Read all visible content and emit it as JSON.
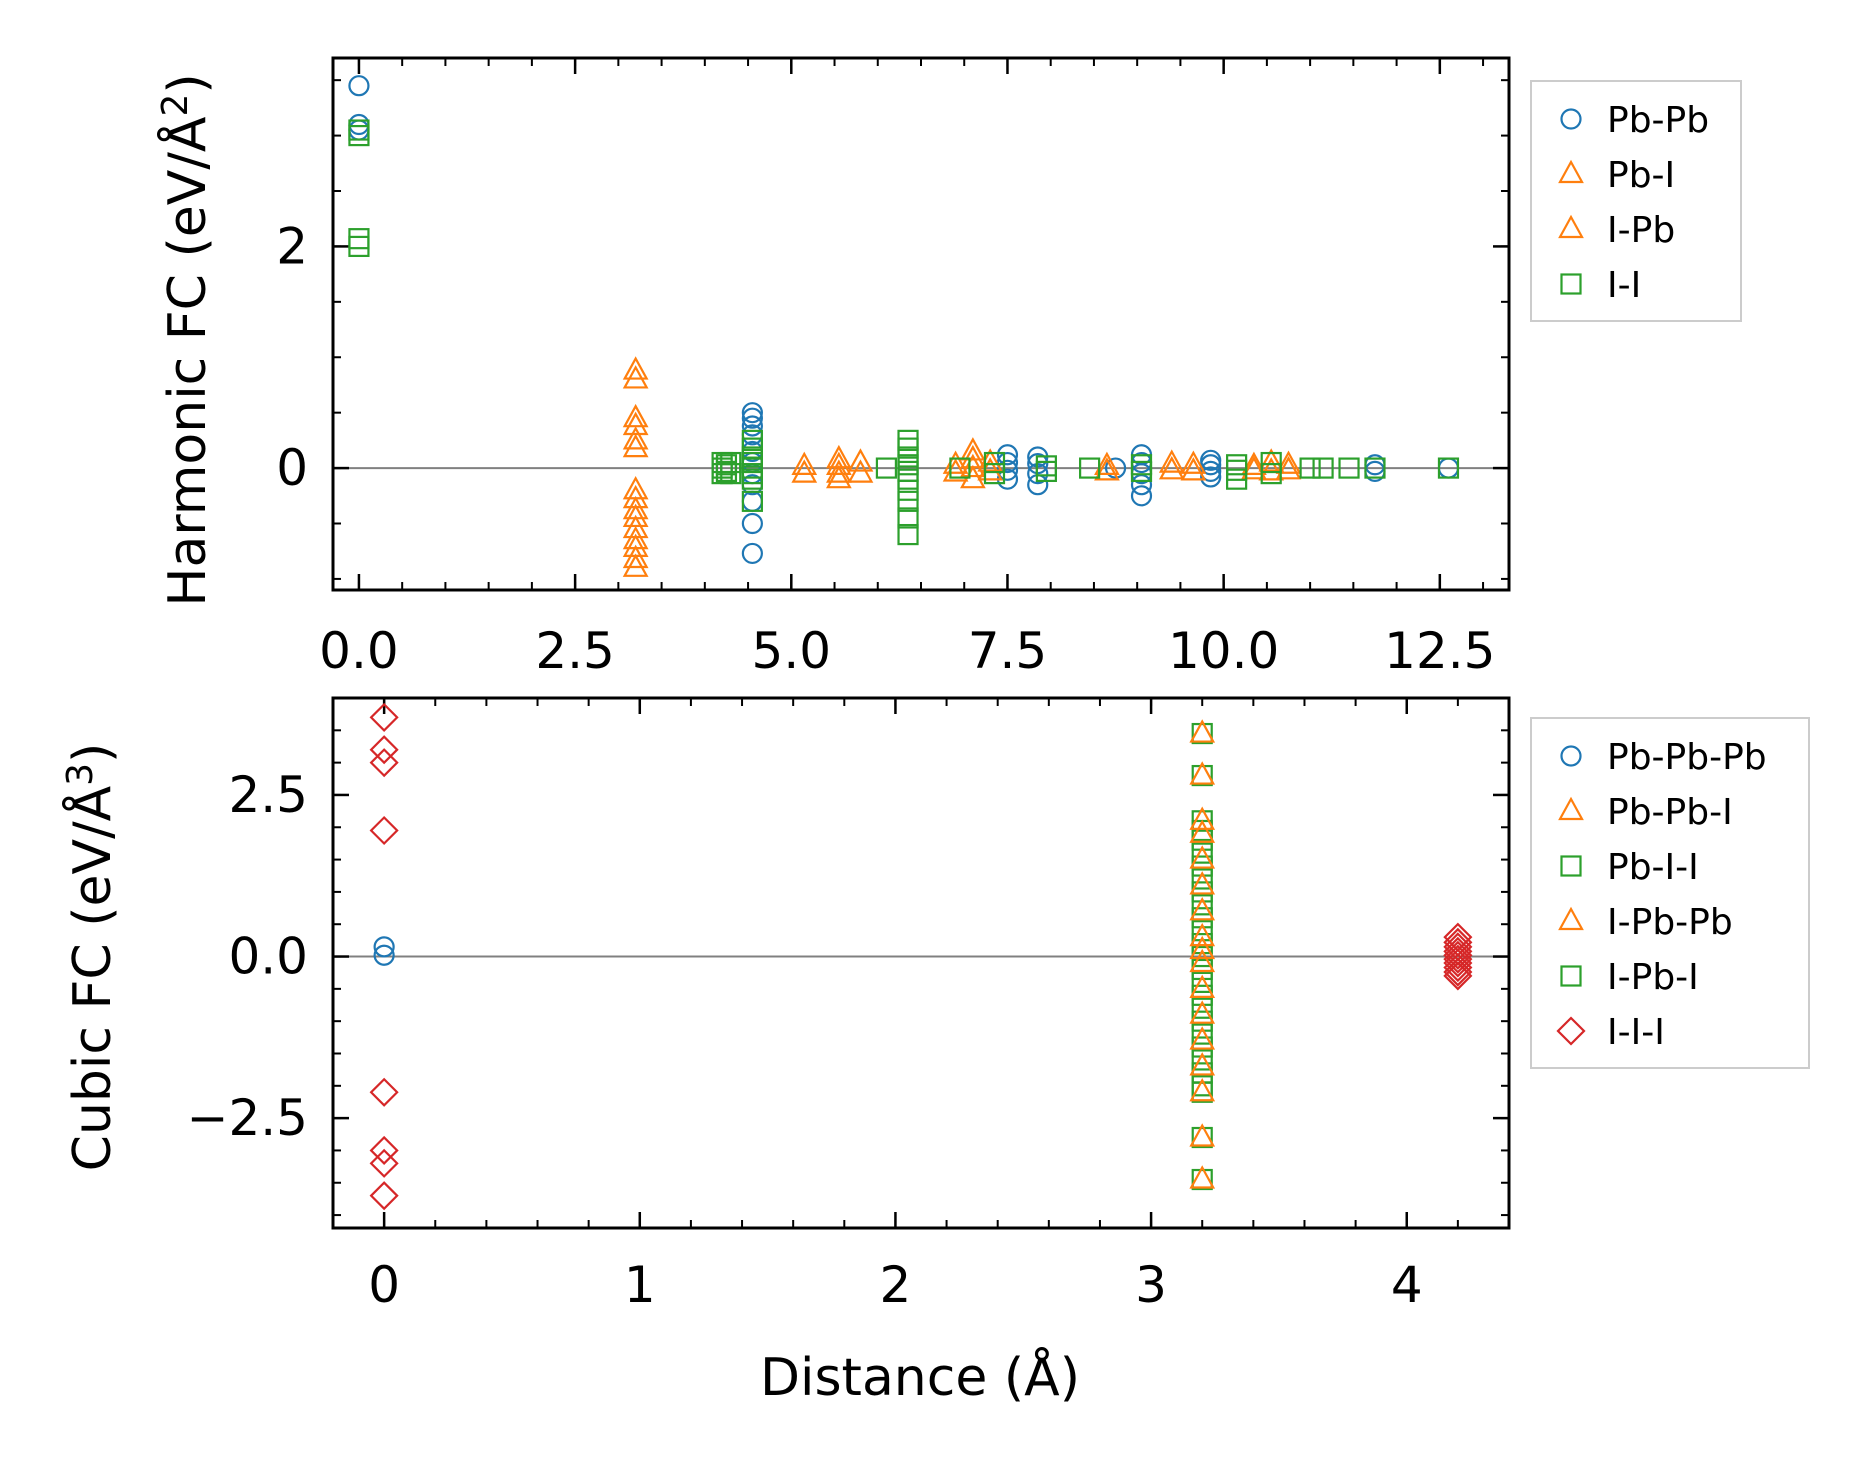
{
  "colors": {
    "pbpb": "#1f77b4",
    "pbi": "#ff7f0e",
    "ii": "#2ca02c",
    "iii": "#d62728",
    "zero_line": "#808080",
    "legend_border": "#cccccc"
  },
  "chart_data": [
    {
      "type": "scatter",
      "id": "harmonic",
      "ylabel": "Harmonic FC (eV/Å",
      "ylabel_sup": "2",
      "ylabel_end": ")",
      "xlim": [
        -0.3,
        13.3
      ],
      "ylim": [
        -1.1,
        3.7
      ],
      "xticks": [
        0.0,
        2.5,
        5.0,
        7.5,
        10.0,
        12.5
      ],
      "xtick_labels": [
        "0.0",
        "2.5",
        "5.0",
        "7.5",
        "10.0",
        "12.5"
      ],
      "xminor_step": 0.5,
      "yticks": [
        0,
        2
      ],
      "ytick_labels": [
        "0",
        "2"
      ],
      "yminor_step": 0.5,
      "hline": 0,
      "legend_entries": [
        {
          "label": "Pb-Pb",
          "marker": "circle",
          "color": "#1f77b4"
        },
        {
          "label": "Pb-I",
          "marker": "triangle",
          "color": "#ff7f0e"
        },
        {
          "label": "I-Pb",
          "marker": "triangle",
          "color": "#ff7f0e"
        },
        {
          "label": "I-I",
          "marker": "square",
          "color": "#2ca02c"
        }
      ],
      "series": [
        {
          "name": "Pb-Pb",
          "marker": "circle",
          "color": "#1f77b4",
          "points": [
            [
              0,
              3.45
            ],
            [
              0,
              3.1
            ],
            [
              0,
              3.05
            ],
            [
              4.55,
              0.5
            ],
            [
              4.55,
              0.45
            ],
            [
              4.55,
              0.38
            ],
            [
              4.55,
              0.3
            ],
            [
              4.55,
              0.15
            ],
            [
              4.55,
              0.05
            ],
            [
              4.55,
              -0.05
            ],
            [
              4.55,
              -0.15
            ],
            [
              4.55,
              -0.3
            ],
            [
              4.55,
              -0.5
            ],
            [
              4.55,
              -0.77
            ],
            [
              7.5,
              0.12
            ],
            [
              7.5,
              0.05
            ],
            [
              7.5,
              -0.02
            ],
            [
              7.5,
              -0.1
            ],
            [
              7.85,
              0.1
            ],
            [
              7.85,
              0.04
            ],
            [
              7.85,
              -0.05
            ],
            [
              7.85,
              -0.15
            ],
            [
              8.75,
              0.0
            ],
            [
              9.05,
              0.12
            ],
            [
              9.05,
              0.05
            ],
            [
              9.05,
              -0.05
            ],
            [
              9.05,
              -0.15
            ],
            [
              9.05,
              -0.25
            ],
            [
              9.85,
              0.07
            ],
            [
              9.85,
              0.03
            ],
            [
              9.85,
              -0.03
            ],
            [
              9.85,
              -0.08
            ],
            [
              11.75,
              0.03
            ],
            [
              11.75,
              -0.03
            ],
            [
              12.6,
              0.0
            ]
          ]
        },
        {
          "name": "Pb-I",
          "marker": "triangle",
          "color": "#ff7f0e",
          "points": [
            [
              3.2,
              0.88
            ],
            [
              3.2,
              0.8
            ],
            [
              3.2,
              0.45
            ],
            [
              3.2,
              0.38
            ],
            [
              3.2,
              0.25
            ],
            [
              3.2,
              0.18
            ],
            [
              3.2,
              -0.2
            ],
            [
              3.2,
              -0.28
            ],
            [
              3.2,
              -0.38
            ],
            [
              3.2,
              -0.45
            ],
            [
              3.2,
              -0.55
            ],
            [
              3.2,
              -0.65
            ],
            [
              3.2,
              -0.72
            ],
            [
              3.2,
              -0.82
            ],
            [
              3.2,
              -0.9
            ],
            [
              5.15,
              0.02
            ],
            [
              5.15,
              -0.05
            ],
            [
              5.55,
              0.08
            ],
            [
              5.55,
              0.02
            ],
            [
              5.55,
              -0.05
            ],
            [
              5.55,
              -0.1
            ],
            [
              5.8,
              0.05
            ],
            [
              5.8,
              -0.05
            ],
            [
              6.9,
              0.03
            ],
            [
              6.9,
              -0.04
            ],
            [
              7.1,
              0.15
            ],
            [
              7.1,
              0.08
            ],
            [
              7.1,
              0.0
            ],
            [
              7.1,
              -0.1
            ],
            [
              7.3,
              0.05
            ],
            [
              7.3,
              -0.03
            ],
            [
              8.65,
              0.02
            ],
            [
              8.65,
              -0.03
            ],
            [
              9.4,
              0.04
            ],
            [
              9.4,
              -0.02
            ],
            [
              9.65,
              0.03
            ],
            [
              9.65,
              -0.03
            ],
            [
              10.35,
              0.02
            ],
            [
              10.35,
              -0.02
            ],
            [
              10.55,
              0.05
            ],
            [
              10.55,
              -0.03
            ],
            [
              10.75,
              0.03
            ],
            [
              10.75,
              -0.02
            ]
          ]
        },
        {
          "name": "I-I",
          "marker": "square",
          "color": "#2ca02c",
          "points": [
            [
              0,
              3.05
            ],
            [
              0,
              3.0
            ],
            [
              0,
              2.07
            ],
            [
              0,
              2.0
            ],
            [
              4.2,
              0.05
            ],
            [
              4.2,
              0.0
            ],
            [
              4.2,
              -0.05
            ],
            [
              4.25,
              0.03
            ],
            [
              4.25,
              -0.03
            ],
            [
              4.3,
              0.05
            ],
            [
              4.3,
              -0.05
            ],
            [
              4.55,
              0.25
            ],
            [
              4.55,
              0.18
            ],
            [
              4.55,
              0.1
            ],
            [
              4.55,
              0.05
            ],
            [
              4.55,
              0.0
            ],
            [
              4.55,
              -0.05
            ],
            [
              4.55,
              -0.1
            ],
            [
              4.55,
              -0.3
            ],
            [
              6.1,
              0.0
            ],
            [
              6.35,
              0.25
            ],
            [
              6.35,
              0.18
            ],
            [
              6.35,
              0.1
            ],
            [
              6.35,
              0.03
            ],
            [
              6.35,
              -0.03
            ],
            [
              6.35,
              -0.1
            ],
            [
              6.35,
              -0.2
            ],
            [
              6.35,
              -0.3
            ],
            [
              6.35,
              -0.45
            ],
            [
              6.35,
              -0.6
            ],
            [
              6.95,
              0.0
            ],
            [
              7.35,
              0.05
            ],
            [
              7.35,
              -0.05
            ],
            [
              7.95,
              0.02
            ],
            [
              7.95,
              -0.03
            ],
            [
              8.45,
              0.0
            ],
            [
              9.05,
              0.03
            ],
            [
              9.05,
              -0.03
            ],
            [
              10.15,
              0.03
            ],
            [
              10.15,
              -0.02
            ],
            [
              10.15,
              -0.1
            ],
            [
              10.55,
              0.05
            ],
            [
              10.55,
              -0.05
            ],
            [
              11.0,
              0.0
            ],
            [
              11.15,
              0.0
            ],
            [
              11.45,
              0.0
            ],
            [
              11.75,
              0.0
            ],
            [
              12.6,
              0.0
            ]
          ]
        }
      ]
    },
    {
      "type": "scatter",
      "id": "cubic",
      "ylabel": "Cubic FC (eV/Å",
      "ylabel_sup": "3",
      "ylabel_end": ")",
      "xlabel": "Distance (Å)",
      "xlim": [
        -0.2,
        4.4
      ],
      "ylim": [
        -4.2,
        4.0
      ],
      "xticks": [
        0,
        1,
        2,
        3,
        4
      ],
      "xtick_labels": [
        "0",
        "1",
        "2",
        "3",
        "4"
      ],
      "xminor_step": 0.2,
      "yticks": [
        -2.5,
        0.0,
        2.5
      ],
      "ytick_labels": [
        "−2.5",
        "0.0",
        "2.5"
      ],
      "yminor_step": 0.5,
      "hline": 0,
      "legend_entries": [
        {
          "label": "Pb-Pb-Pb",
          "marker": "circle",
          "color": "#1f77b4"
        },
        {
          "label": "Pb-Pb-I",
          "marker": "triangle",
          "color": "#ff7f0e"
        },
        {
          "label": "Pb-I-I",
          "marker": "square",
          "color": "#2ca02c"
        },
        {
          "label": "I-Pb-Pb",
          "marker": "triangle",
          "color": "#ff7f0e"
        },
        {
          "label": "I-Pb-I",
          "marker": "square",
          "color": "#2ca02c"
        },
        {
          "label": "I-I-I",
          "marker": "diamond",
          "color": "#d62728"
        }
      ],
      "series": [
        {
          "name": "Pb-Pb-Pb",
          "marker": "circle",
          "color": "#1f77b4",
          "points": [
            [
              0,
              0.15
            ],
            [
              0,
              0.02
            ]
          ]
        },
        {
          "name": "Pb-I-I + I-Pb-I",
          "marker": "square",
          "color": "#2ca02c",
          "points": [
            [
              3.2,
              3.45
            ],
            [
              3.2,
              2.8
            ],
            [
              3.2,
              2.1
            ],
            [
              3.2,
              1.95
            ],
            [
              3.2,
              1.8
            ],
            [
              3.2,
              1.6
            ],
            [
              3.2,
              1.4
            ],
            [
              3.2,
              1.2
            ],
            [
              3.2,
              1.0
            ],
            [
              3.2,
              0.8
            ],
            [
              3.2,
              0.6
            ],
            [
              3.2,
              0.4
            ],
            [
              3.2,
              0.2
            ],
            [
              3.2,
              0.0
            ],
            [
              3.2,
              -0.2
            ],
            [
              3.2,
              -0.4
            ],
            [
              3.2,
              -0.6
            ],
            [
              3.2,
              -0.8
            ],
            [
              3.2,
              -1.0
            ],
            [
              3.2,
              -1.2
            ],
            [
              3.2,
              -1.4
            ],
            [
              3.2,
              -1.6
            ],
            [
              3.2,
              -1.8
            ],
            [
              3.2,
              -2.0
            ],
            [
              3.2,
              -2.1
            ],
            [
              3.2,
              -2.8
            ],
            [
              3.2,
              -3.45
            ]
          ]
        },
        {
          "name": "Pb-Pb-I + I-Pb-Pb",
          "marker": "triangle",
          "color": "#ff7f0e",
          "points": [
            [
              3.2,
              3.45
            ],
            [
              3.2,
              2.8
            ],
            [
              3.2,
              2.1
            ],
            [
              3.2,
              1.9
            ],
            [
              3.2,
              1.5
            ],
            [
              3.2,
              1.1
            ],
            [
              3.2,
              0.7
            ],
            [
              3.2,
              0.3
            ],
            [
              3.2,
              0.1
            ],
            [
              3.2,
              -0.1
            ],
            [
              3.2,
              -0.5
            ],
            [
              3.2,
              -0.9
            ],
            [
              3.2,
              -1.3
            ],
            [
              3.2,
              -1.7
            ],
            [
              3.2,
              -2.1
            ],
            [
              3.2,
              -2.8
            ],
            [
              3.2,
              -3.45
            ]
          ]
        },
        {
          "name": "I-I-I",
          "marker": "diamond",
          "color": "#d62728",
          "points": [
            [
              0,
              3.7
            ],
            [
              0,
              3.2
            ],
            [
              0,
              3.0
            ],
            [
              0,
              1.95
            ],
            [
              0,
              -2.1
            ],
            [
              0,
              -3.0
            ],
            [
              0,
              -3.2
            ],
            [
              0,
              -3.7
            ],
            [
              4.2,
              0.3
            ],
            [
              4.2,
              0.22
            ],
            [
              4.2,
              0.15
            ],
            [
              4.2,
              0.08
            ],
            [
              4.2,
              0.02
            ],
            [
              4.2,
              -0.04
            ],
            [
              4.2,
              -0.1
            ],
            [
              4.2,
              -0.17
            ],
            [
              4.2,
              -0.24
            ],
            [
              4.2,
              -0.3
            ]
          ]
        }
      ]
    }
  ]
}
